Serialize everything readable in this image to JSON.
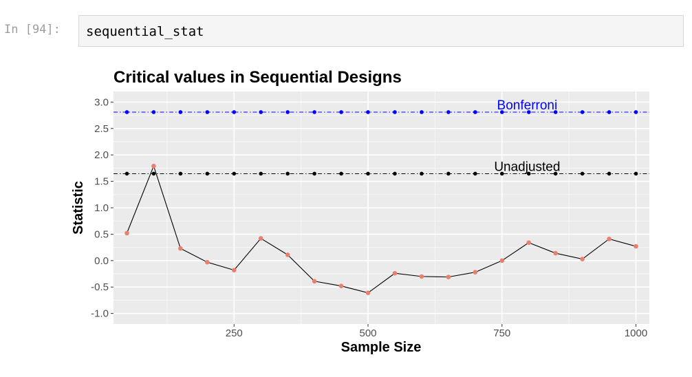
{
  "cell": {
    "prompt": "In [94]:",
    "code": "sequential_stat"
  },
  "colors": {
    "bonferroni": "#0000ff",
    "unadjusted": "#000000",
    "statistic_points": "#e8806f",
    "panel": "#ebebeb"
  },
  "chart_data": {
    "type": "line",
    "title": "Critical values in Sequential Designs",
    "xlabel": "Sample Size",
    "ylabel": "Statistic",
    "xlim": [
      25,
      1025
    ],
    "ylim": [
      -1.2,
      3.2
    ],
    "xticks": [
      250,
      500,
      750,
      1000
    ],
    "xtick_labels": [
      "250",
      "500",
      "750",
      "1000"
    ],
    "yticks": [
      -1.0,
      -0.5,
      0.0,
      0.5,
      1.0,
      1.5,
      2.0,
      2.5,
      3.0
    ],
    "ytick_labels": [
      "-1.0",
      "-0.5",
      "0.0",
      "0.5",
      "1.0",
      "1.5",
      "2.0",
      "2.5",
      "3.0"
    ],
    "grid": true,
    "x": [
      50,
      100,
      150,
      200,
      250,
      300,
      350,
      400,
      450,
      500,
      550,
      600,
      650,
      700,
      750,
      800,
      850,
      900,
      950,
      1000
    ],
    "series": [
      {
        "values": [
          0.52,
          1.79,
          0.23,
          -0.03,
          -0.18,
          0.42,
          0.11,
          -0.39,
          -0.48,
          -0.61,
          -0.24,
          -0.3,
          -0.31,
          -0.22,
          0.0,
          0.34,
          0.14,
          0.03,
          0.41,
          0.27
        ]
      },
      {
        "name": "Bonferroni",
        "values": [
          2.81,
          2.81,
          2.81,
          2.81,
          2.81,
          2.81,
          2.81,
          2.81,
          2.81,
          2.81,
          2.81,
          2.81,
          2.81,
          2.81,
          2.81,
          2.81,
          2.81,
          2.81,
          2.81,
          2.81
        ]
      },
      {
        "name": "Unadjusted",
        "values": [
          1.645,
          1.645,
          1.645,
          1.645,
          1.645,
          1.645,
          1.645,
          1.645,
          1.645,
          1.645,
          1.645,
          1.645,
          1.645,
          1.645,
          1.645,
          1.645,
          1.645,
          1.645,
          1.645,
          1.645
        ]
      }
    ],
    "annotations": [
      {
        "text": "Bonferroni",
        "x": 797,
        "y": 2.81
      },
      {
        "text": "Unadjusted",
        "x": 797,
        "y": 1.645
      }
    ]
  }
}
